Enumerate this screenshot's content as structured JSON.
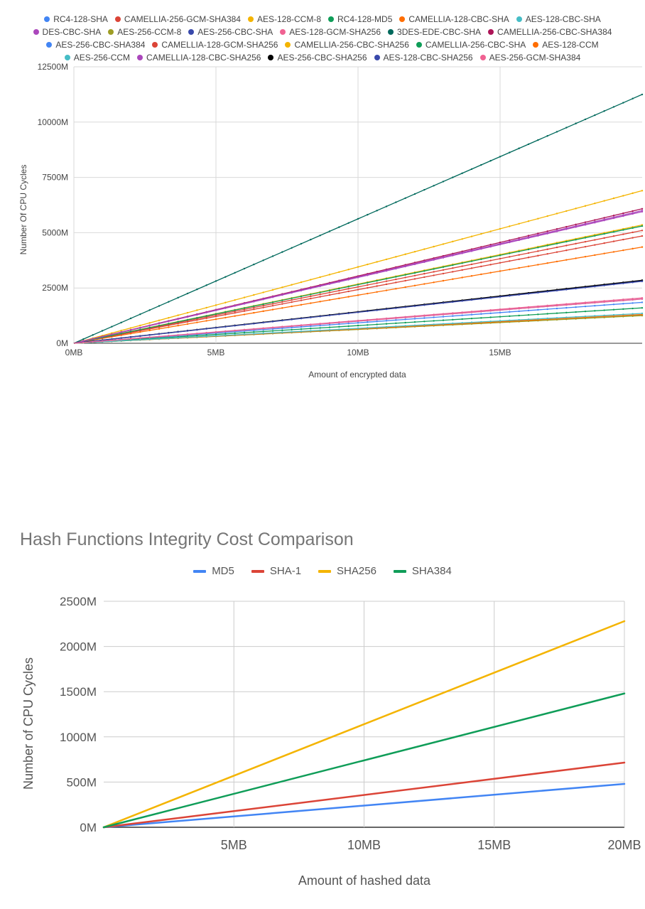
{
  "chart_data": [
    {
      "type": "line",
      "title": "",
      "xlabel": "Amount of encrypted data",
      "ylabel": "Number Of CPU Cycles",
      "xlim": [
        0,
        20
      ],
      "ylim": [
        0,
        12500
      ],
      "x_ticks": [
        "0MB",
        "5MB",
        "10MB",
        "15MB"
      ],
      "y_ticks": [
        "0M",
        "2500M",
        "5000M",
        "7500M",
        "10000M",
        "12500M"
      ],
      "grid": true,
      "legend": "top",
      "legend_rows": [
        [
          "RC4-128-SHA",
          "CAMELLIA-256-GCM-SHA384",
          "AES-128-CCM-8",
          "RC4-128-MD5",
          "CAMELLIA-128-CBC-SHA",
          "AES-128-CBC-SHA"
        ],
        [
          "DES-CBC-SHA",
          "AES-256-CCM-8",
          "AES-256-CBC-SHA",
          "AES-128-GCM-SHA256",
          "3DES-EDE-CBC-SHA",
          "CAMELLIA-256-CBC-SHA384"
        ],
        [
          "AES-256-CBC-SHA384",
          "CAMELLIA-128-GCM-SHA256",
          "CAMELLIA-256-CBC-SHA256",
          "CAMELLIA-256-CBC-SHA",
          "AES-128-CCM"
        ],
        [
          "AES-256-CCM",
          "CAMELLIA-128-CBC-SHA256",
          "AES-256-CBC-SHA256",
          "AES-128-CBC-SHA256",
          "AES-256-GCM-SHA384"
        ]
      ],
      "x": [
        0,
        20
      ],
      "series": [
        {
          "name": "RC4-128-SHA",
          "color": "#4285f4",
          "values": [
            0,
            1850
          ]
        },
        {
          "name": "CAMELLIA-256-GCM-SHA384",
          "color": "#db4437",
          "values": [
            0,
            5100
          ]
        },
        {
          "name": "AES-128-CCM-8",
          "color": "#f4b400",
          "values": [
            0,
            6900
          ]
        },
        {
          "name": "RC4-128-MD5",
          "color": "#0f9d58",
          "values": [
            0,
            1600
          ]
        },
        {
          "name": "CAMELLIA-128-CBC-SHA",
          "color": "#ff6d00",
          "values": [
            0,
            4350
          ]
        },
        {
          "name": "AES-128-CBC-SHA",
          "color": "#46bdc6",
          "values": [
            0,
            1280
          ]
        },
        {
          "name": "DES-CBC-SHA",
          "color": "#ab47bc",
          "values": [
            0,
            5950
          ]
        },
        {
          "name": "AES-256-CCM-8",
          "color": "#9e9d24",
          "values": [
            0,
            1250
          ]
        },
        {
          "name": "AES-256-CBC-SHA",
          "color": "#3949ab",
          "values": [
            0,
            2820
          ]
        },
        {
          "name": "AES-128-GCM-SHA256",
          "color": "#f06292",
          "values": [
            0,
            2050
          ]
        },
        {
          "name": "3DES-EDE-CBC-SHA",
          "color": "#00695c",
          "values": [
            0,
            11250
          ]
        },
        {
          "name": "CAMELLIA-256-CBC-SHA384",
          "color": "#ad1457",
          "values": [
            0,
            6080
          ]
        },
        {
          "name": "AES-256-CBC-SHA384",
          "color": "#4285f4",
          "values": [
            0,
            2000
          ]
        },
        {
          "name": "CAMELLIA-128-GCM-SHA256",
          "color": "#db4437",
          "values": [
            0,
            4850
          ]
        },
        {
          "name": "CAMELLIA-256-CBC-SHA256",
          "color": "#f4b400",
          "values": [
            0,
            5350
          ]
        },
        {
          "name": "CAMELLIA-256-CBC-SHA",
          "color": "#0f9d58",
          "values": [
            0,
            5300
          ]
        },
        {
          "name": "AES-128-CCM",
          "color": "#ff6d00",
          "values": [
            0,
            1300
          ]
        },
        {
          "name": "AES-256-CCM",
          "color": "#46bdc6",
          "values": [
            0,
            1350
          ]
        },
        {
          "name": "CAMELLIA-128-CBC-SHA256",
          "color": "#ab47bc",
          "values": [
            0,
            6000
          ]
        },
        {
          "name": "AES-256-CBC-SHA256",
          "color": "#000000",
          "values": [
            0,
            2850
          ]
        },
        {
          "name": "AES-128-CBC-SHA256",
          "color": "#3949ab",
          "values": [
            0,
            2800
          ]
        },
        {
          "name": "AES-256-GCM-SHA384",
          "color": "#f06292",
          "values": [
            0,
            2000
          ]
        }
      ]
    },
    {
      "type": "line",
      "title": "Hash Functions Integrity Cost Comparison",
      "xlabel": "Amount of hashed data",
      "ylabel": "Number of CPU Cycles",
      "xlim": [
        0,
        20
      ],
      "ylim": [
        0,
        2500
      ],
      "x_ticks": [
        "5MB",
        "10MB",
        "15MB",
        "20MB"
      ],
      "y_ticks": [
        "0M",
        "500M",
        "1000M",
        "1500M",
        "2000M",
        "2500M"
      ],
      "grid": true,
      "legend": "top",
      "x": [
        0,
        20
      ],
      "series": [
        {
          "name": "MD5",
          "color": "#4285f4",
          "values": [
            0,
            480
          ]
        },
        {
          "name": "SHA-1",
          "color": "#db4437",
          "values": [
            0,
            715
          ]
        },
        {
          "name": "SHA256",
          "color": "#f4b400",
          "values": [
            0,
            2280
          ]
        },
        {
          "name": "SHA384",
          "color": "#0f9d58",
          "values": [
            0,
            1480
          ]
        }
      ]
    }
  ]
}
